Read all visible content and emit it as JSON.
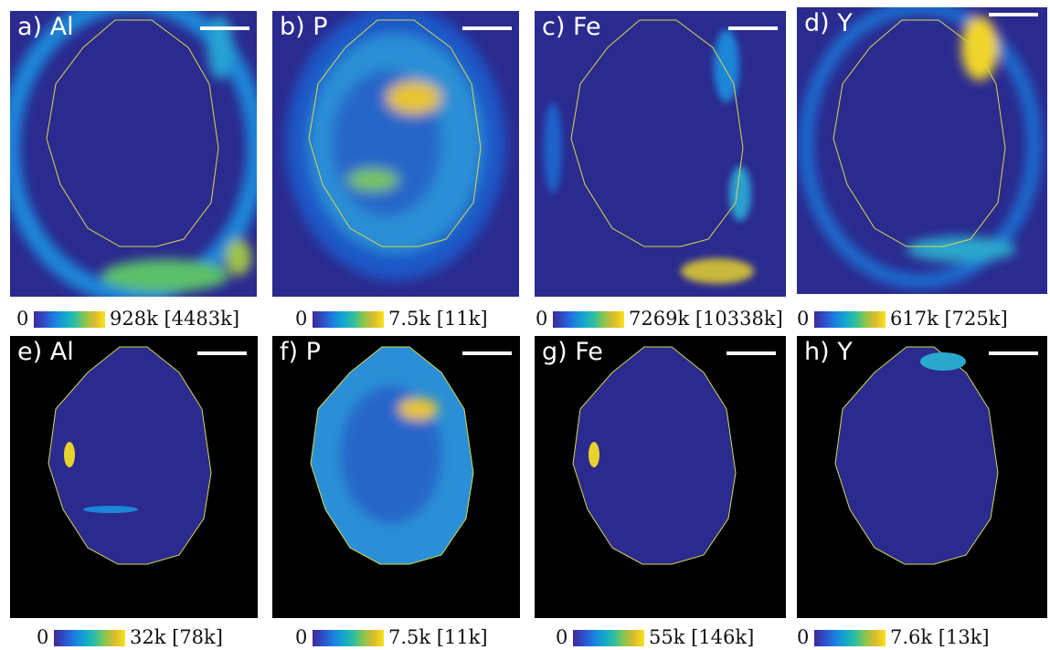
{
  "figure": {
    "panels": [
      {
        "label": "a) Al",
        "element": "Al",
        "row": "top"
      },
      {
        "label": "b) P",
        "element": "P",
        "row": "top"
      },
      {
        "label": "c) Fe",
        "element": "Fe",
        "row": "top"
      },
      {
        "label": "d) Y",
        "element": "Y",
        "row": "top"
      },
      {
        "label": "e) Al",
        "element": "Al",
        "row": "bottom"
      },
      {
        "label": "f) P",
        "element": "P",
        "row": "bottom"
      },
      {
        "label": "g) Fe",
        "element": "Fe",
        "row": "bottom"
      },
      {
        "label": "h) Y",
        "element": "Y",
        "row": "bottom"
      }
    ],
    "colorbars": [
      {
        "min": "0",
        "max": "928k [4483k]"
      },
      {
        "min": "0",
        "max": "7.5k [11k]"
      },
      {
        "min": "0",
        "max": "7269k [10338k]"
      },
      {
        "min": "0",
        "max": "617k [725k]"
      },
      {
        "min": "0",
        "max": "32k [78k]"
      },
      {
        "min": "0",
        "max": "7.5k [11k]"
      },
      {
        "min": "0",
        "max": "55k [146k]"
      },
      {
        "min": "0",
        "max": "7.6k [13k]"
      }
    ],
    "colors": {
      "map_background": "#2b2a8f",
      "masked_background": "#000000",
      "outline": "#d8d84a",
      "scalebar": "#ffffff",
      "colormap": [
        "#3c2c94",
        "#2f4dc9",
        "#1c7ee0",
        "#12a5cf",
        "#2bbfa2",
        "#8ac54f",
        "#dcbb2c",
        "#f9e21b"
      ]
    }
  }
}
